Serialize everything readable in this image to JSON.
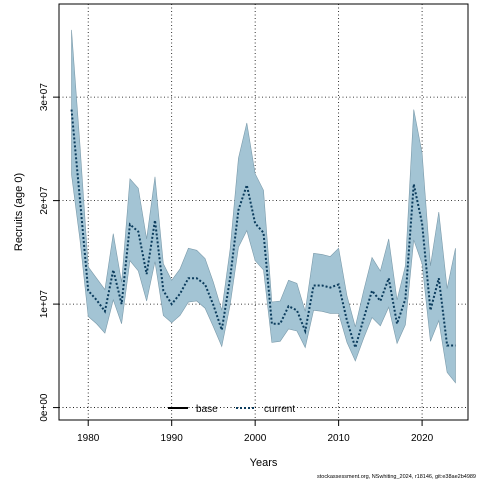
{
  "chart_data": {
    "type": "line",
    "title": "",
    "xlabel": "Years",
    "ylabel": "Recruits (age 0)",
    "xlim": [
      1976.5,
      2025.5
    ],
    "ylim": [
      -1200000,
      39000000
    ],
    "x_ticks": [
      1980,
      1990,
      2000,
      2010,
      2020
    ],
    "x_tick_labels": [
      "1980",
      "1990",
      "2000",
      "2010",
      "2020"
    ],
    "y_ticks": [
      0,
      10000000,
      20000000,
      30000000
    ],
    "y_tick_labels": [
      "0e+00",
      "1e+07",
      "2e+07",
      "3e+07"
    ],
    "grid": true,
    "legend_position": "bottom",
    "band_color": "#a3c4d4",
    "band_edge_color": "#7a9aaa",
    "series": [
      {
        "name": "base",
        "color": "#000000",
        "style": "solid",
        "x": [],
        "values": []
      },
      {
        "name": "current",
        "color": "#0b3c5d",
        "style": "dotted",
        "x": [
          1978,
          1979,
          1980,
          1981,
          1982,
          1983,
          1984,
          1985,
          1986,
          1987,
          1988,
          1989,
          1990,
          1991,
          1992,
          1993,
          1994,
          1995,
          1996,
          1997,
          1998,
          1999,
          2000,
          2001,
          2002,
          2003,
          2004,
          2005,
          2006,
          2007,
          2008,
          2009,
          2010,
          2011,
          2012,
          2013,
          2014,
          2015,
          2016,
          2017,
          2018,
          2019,
          2020,
          2021,
          2022,
          2023,
          2024
        ],
        "values": [
          28800000,
          20200000,
          11300000,
          10400000,
          9300000,
          13300000,
          10000000,
          17700000,
          17000000,
          12900000,
          18100000,
          11300000,
          10000000,
          11000000,
          12500000,
          12500000,
          11900000,
          9900000,
          7500000,
          12500000,
          19100000,
          21500000,
          17800000,
          16900000,
          8100000,
          8100000,
          9800000,
          9400000,
          7400000,
          11800000,
          11800000,
          11600000,
          11900000,
          8400000,
          5800000,
          8600000,
          11300000,
          10300000,
          12500000,
          8100000,
          10500000,
          21600000,
          17800000,
          9400000,
          12500000,
          6000000,
          6000000
        ],
        "lower": [
          22500000,
          16300000,
          8800000,
          8100000,
          7200000,
          10400000,
          8100000,
          14200000,
          13200000,
          10300000,
          14100000,
          8900000,
          8200000,
          8900000,
          10200000,
          10300000,
          9600000,
          7800000,
          5900000,
          9900000,
          15500000,
          17100000,
          14200000,
          13300000,
          6300000,
          6400000,
          7600000,
          7400000,
          5800000,
          9400000,
          9300000,
          9100000,
          9100000,
          6300000,
          4500000,
          6700000,
          8700000,
          7900000,
          9700000,
          6200000,
          8000000,
          16200000,
          13900000,
          6400000,
          8400000,
          3400000,
          2400000
        ],
        "upper": [
          36500000,
          25500000,
          13600000,
          12500000,
          11400000,
          16800000,
          12100000,
          22100000,
          21200000,
          16300000,
          22300000,
          13900000,
          12300000,
          13400000,
          15400000,
          15200000,
          14400000,
          12100000,
          9400000,
          15300000,
          24100000,
          27500000,
          22600000,
          21000000,
          10200000,
          10300000,
          12300000,
          12000000,
          9300000,
          14900000,
          14800000,
          14600000,
          15400000,
          10800000,
          7800000,
          11300000,
          14500000,
          13200000,
          16300000,
          10400000,
          13700000,
          28800000,
          24600000,
          13700000,
          18900000,
          11500000,
          15400000
        ]
      }
    ],
    "footer_text": "stockassessment.org, NSwhiting_2024, r18146, git:e38ae2b4989"
  }
}
